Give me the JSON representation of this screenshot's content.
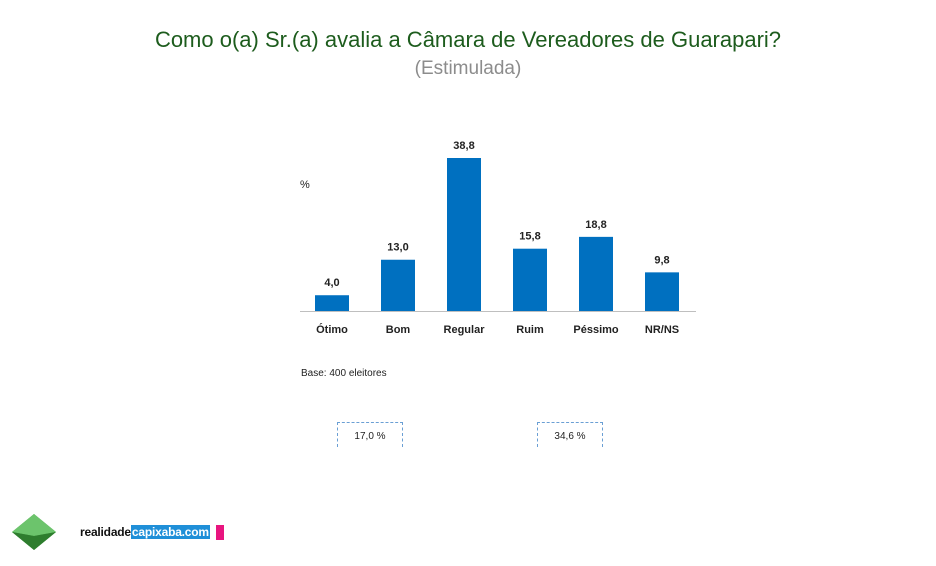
{
  "chart_data": {
    "type": "bar",
    "title": "Como o(a) Sr.(a) avalia a Câmara de Vereadores de Guarapari?",
    "subtitle": "(Estimulada)",
    "ylabel": "%",
    "xlabel": "",
    "categories": [
      "Ótimo",
      "Bom",
      "Regular",
      "Ruim",
      "Péssimo",
      "NR/NS"
    ],
    "values": [
      4.0,
      13.0,
      38.8,
      15.8,
      18.8,
      9.8
    ],
    "value_labels": [
      "4,0",
      "13,0",
      "38,8",
      "15,8",
      "18,8",
      "9,8"
    ],
    "ylim": [
      0,
      40
    ],
    "grid": false,
    "bar_color": "#0070c0",
    "annotations": {
      "base": "Base: 400 eleitores",
      "positive_total": "17,0 %",
      "negative_total": "34,6 %"
    }
  },
  "footer": {
    "brand_prefix": "realidade",
    "brand_highlight": "capixaba.com",
    "accent_color": "#e8157f"
  }
}
